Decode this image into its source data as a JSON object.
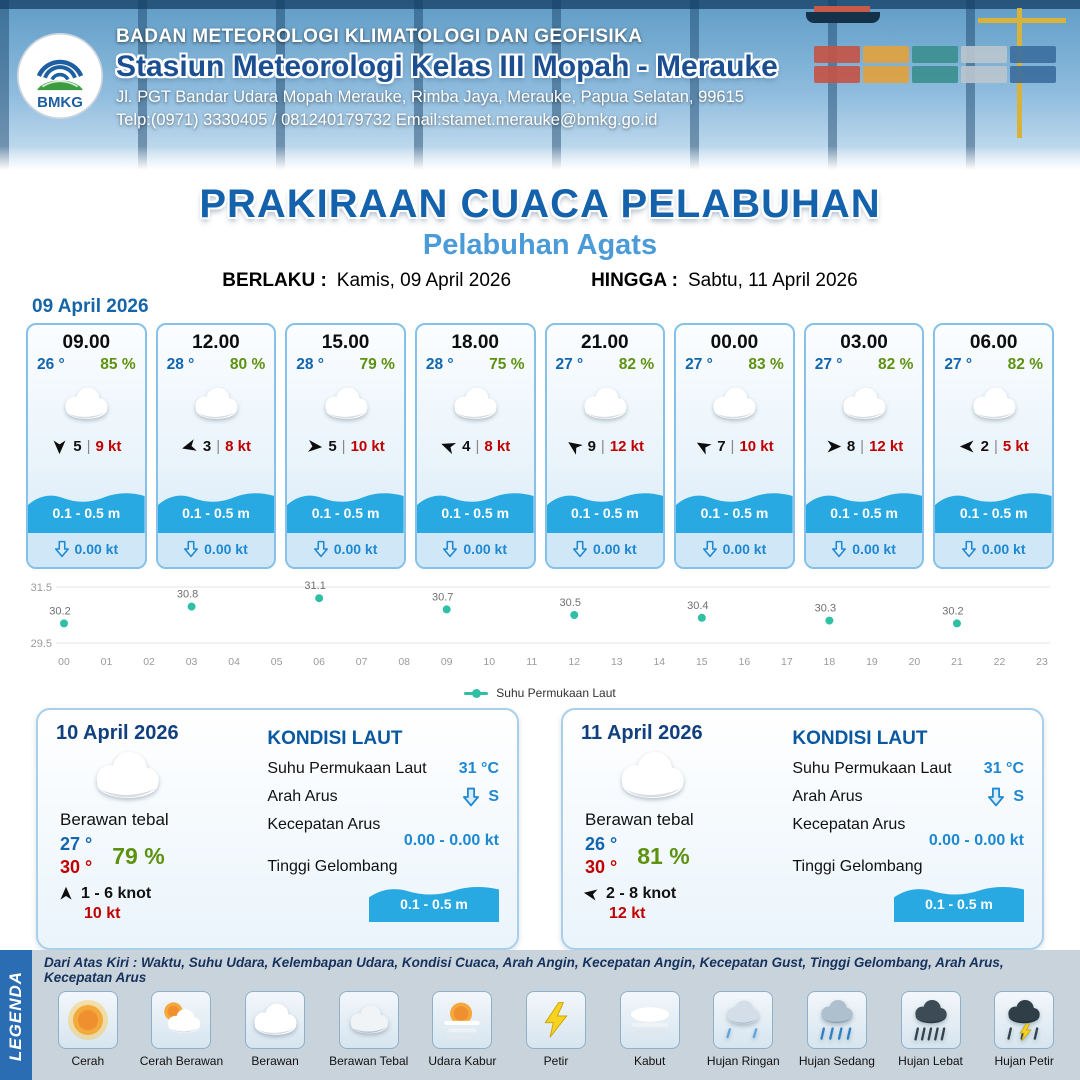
{
  "header": {
    "logo_text": "BMKG",
    "org": "BADAN METEOROLOGI KLIMATOLOGI DAN GEOFISIKA",
    "station": "Stasiun Meteorologi Kelas III Mopah - Merauke",
    "address": "Jl. PGT Bandar Udara Mopah Merauke, Rimba Jaya, Merauke, Papua Selatan, 99615",
    "contact": "Telp:(0971) 3330405 / 081240179732  Email:stamet.merauke@bmkg.go.id"
  },
  "title": {
    "main": "PRAKIRAAN CUACA PELABUHAN",
    "subtitle": "Pelabuhan Agats",
    "berlaku_label": "BERLAKU :",
    "berlaku_value": "Kamis, 09 April 2026",
    "hingga_label": "HINGGA :",
    "hingga_value": "Sabtu, 11 April 2026"
  },
  "forecast": {
    "date": "09 April 2026",
    "cards": [
      {
        "time": "09.00",
        "temp": "26 °",
        "humidity": "85 %",
        "wind_dir_deg": 90,
        "wind_force": "5",
        "wind_speed": "9 kt",
        "wave": "0.1 - 0.5 m",
        "current": "0.00 kt",
        "weather_icon": "cloud"
      },
      {
        "time": "12.00",
        "temp": "28 °",
        "humidity": "80 %",
        "wind_dir_deg": 165,
        "wind_force": "3",
        "wind_speed": "8 kt",
        "wave": "0.1 - 0.5 m",
        "current": "0.00 kt",
        "weather_icon": "cloud"
      },
      {
        "time": "15.00",
        "temp": "28 °",
        "humidity": "79 %",
        "wind_dir_deg": 5,
        "wind_force": "5",
        "wind_speed": "10 kt",
        "wave": "0.1 - 0.5 m",
        "current": "0.00 kt",
        "weather_icon": "cloud"
      },
      {
        "time": "18.00",
        "temp": "28 °",
        "humidity": "75 %",
        "wind_dir_deg": 200,
        "wind_force": "4",
        "wind_speed": "8 kt",
        "wave": "0.1 - 0.5 m",
        "current": "0.00 kt",
        "weather_icon": "cloud"
      },
      {
        "time": "21.00",
        "temp": "27 °",
        "humidity": "82 %",
        "wind_dir_deg": 215,
        "wind_force": "9",
        "wind_speed": "12 kt",
        "wave": "0.1 - 0.5 m",
        "current": "0.00 kt",
        "weather_icon": "cloud"
      },
      {
        "time": "00.00",
        "temp": "27 °",
        "humidity": "83 %",
        "wind_dir_deg": 210,
        "wind_force": "7",
        "wind_speed": "10 kt",
        "wave": "0.1 - 0.5 m",
        "current": "0.00 kt",
        "weather_icon": "cloud"
      },
      {
        "time": "03.00",
        "temp": "27 °",
        "humidity": "82 %",
        "wind_dir_deg": 0,
        "wind_force": "8",
        "wind_speed": "12 kt",
        "wave": "0.1 - 0.5 m",
        "current": "0.00 kt",
        "weather_icon": "cloud"
      },
      {
        "time": "06.00",
        "temp": "27 °",
        "humidity": "82 %",
        "wind_dir_deg": 180,
        "wind_force": "2",
        "wind_speed": "5 kt",
        "wave": "0.1 - 0.5 m",
        "current": "0.00 kt",
        "weather_icon": "cloud"
      }
    ]
  },
  "chart_data": {
    "type": "scatter",
    "title": "",
    "x_ticks": [
      "00",
      "01",
      "02",
      "03",
      "04",
      "05",
      "06",
      "07",
      "08",
      "09",
      "10",
      "11",
      "12",
      "13",
      "14",
      "15",
      "16",
      "17",
      "18",
      "19",
      "20",
      "21",
      "22",
      "23"
    ],
    "x": [
      0,
      3,
      6,
      9,
      12,
      15,
      18,
      21
    ],
    "values": [
      30.2,
      30.8,
      31.1,
      30.7,
      30.5,
      30.4,
      30.3,
      30.2
    ],
    "ylim": [
      29.5,
      31.5
    ],
    "legend": "Suhu Permukaan Laut",
    "dot_color": "#2ebfa5",
    "grid": true,
    "legend_position": "bottom"
  },
  "daily": [
    {
      "date": "10 April 2026",
      "condition": "Berawan tebal",
      "weather_icon": "cloud",
      "temp_min": "27 °",
      "temp_max": "30 °",
      "humidity": "79 %",
      "wind_dir_deg": 270,
      "wind_range": "1 - 6 knot",
      "gust": "10 kt",
      "sea": {
        "title": "KONDISI LAUT",
        "sst_label": "Suhu Permukaan Laut",
        "sst_value": "31 °C",
        "current_dir_label": "Arah Arus",
        "current_dir_value": "S",
        "current_speed_label": "Kecepatan Arus",
        "current_speed_value": "0.00 - 0.00 kt",
        "wave_label": "Tinggi Gelombang",
        "wave_value": "0.1 - 0.5 m"
      }
    },
    {
      "date": "11 April 2026",
      "condition": "Berawan tebal",
      "weather_icon": "cloud",
      "temp_min": "26 °",
      "temp_max": "30 °",
      "humidity": "81 %",
      "wind_dir_deg": 190,
      "wind_range": "2 - 8 knot",
      "gust": "12 kt",
      "sea": {
        "title": "KONDISI LAUT",
        "sst_label": "Suhu Permukaan Laut",
        "sst_value": "31 °C",
        "current_dir_label": "Arah Arus",
        "current_dir_value": "S",
        "current_speed_label": "Kecepatan Arus",
        "current_speed_value": "0.00 - 0.00 kt",
        "wave_label": "Tinggi Gelombang",
        "wave_value": "0.1 - 0.5 m"
      }
    }
  ],
  "legend_section": {
    "title": "LEGENDA",
    "description": "Dari Atas Kiri : Waktu, Suhu Udara, Kelembapan Udara, Kondisi Cuaca, Arah Angin, Kecepatan Angin, Kecepatan Gust, Tinggi Gelombang, Arah Arus, Kecepatan Arus",
    "items": [
      {
        "label": "Cerah",
        "icon": "sun"
      },
      {
        "label": "Cerah Berawan",
        "icon": "sun-cloud"
      },
      {
        "label": "Berawan",
        "icon": "cloud"
      },
      {
        "label": "Berawan Tebal",
        "icon": "cloud-thick"
      },
      {
        "label": "Udara Kabur",
        "icon": "haze"
      },
      {
        "label": "Petir",
        "icon": "lightning"
      },
      {
        "label": "Kabut",
        "icon": "fog"
      },
      {
        "label": "Hujan Ringan",
        "icon": "rain-light"
      },
      {
        "label": "Hujan Sedang",
        "icon": "rain-medium"
      },
      {
        "label": "Hujan Lebat",
        "icon": "rain-heavy"
      },
      {
        "label": "Hujan Petir",
        "icon": "storm"
      }
    ]
  },
  "colors": {
    "accent_blue": "#1565a8",
    "light_blue": "#4a9bd8",
    "green": "#5d9110",
    "red": "#c00000",
    "wave_blue": "#29a9e1",
    "teal_dot": "#2ebfa5",
    "legend_bar": "#2a6db3"
  }
}
